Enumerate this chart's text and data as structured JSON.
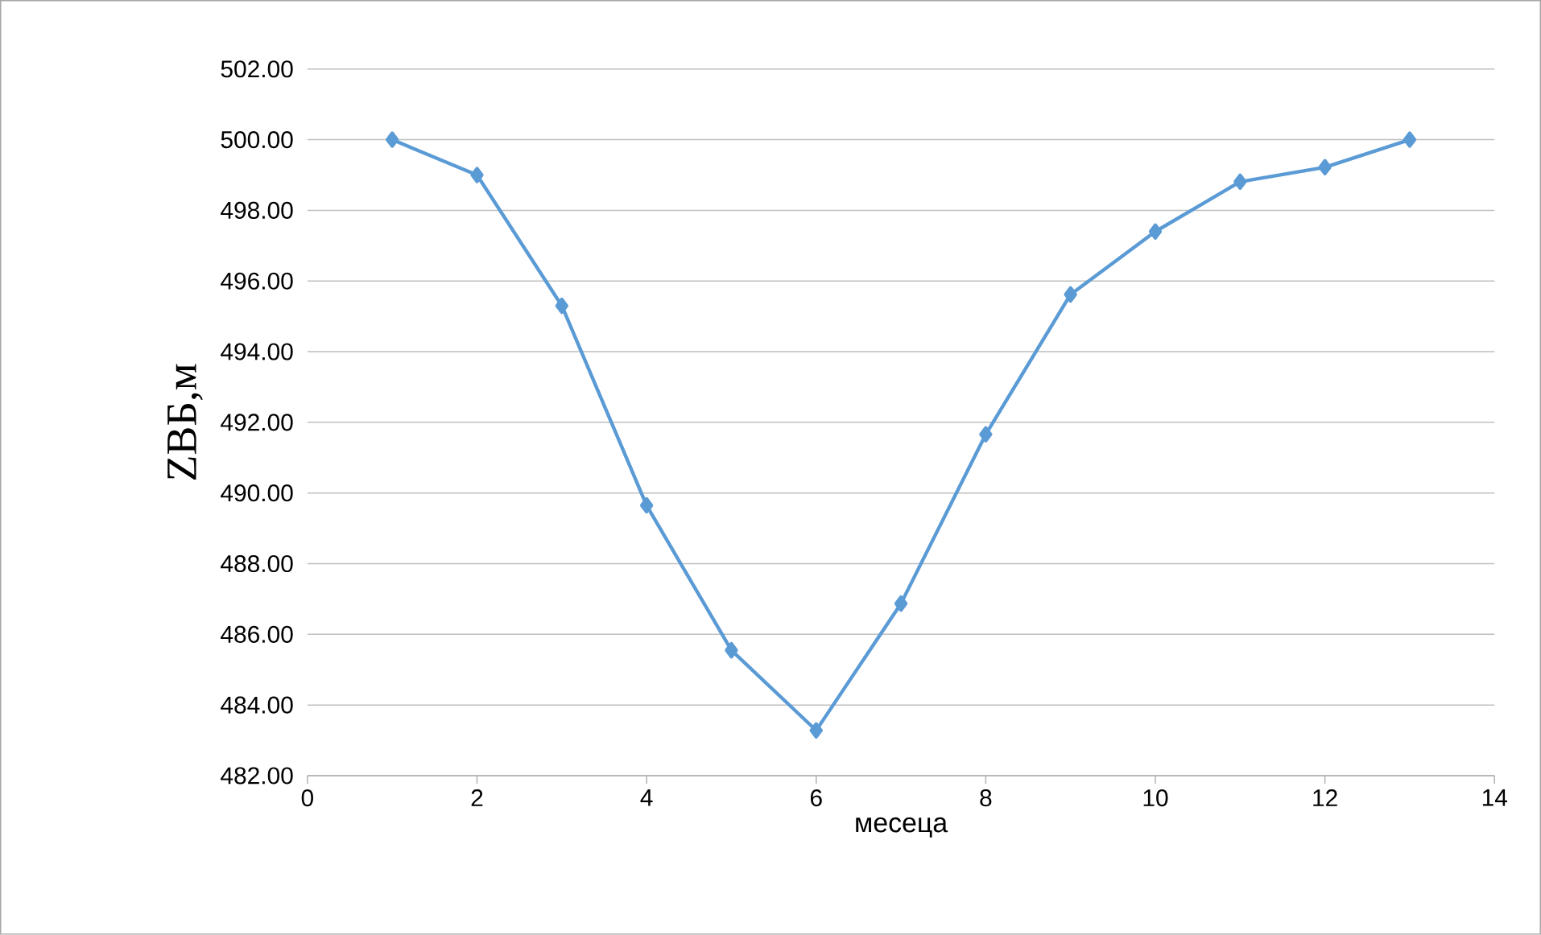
{
  "chart_data": {
    "type": "line",
    "xlabel": "месеца",
    "ylabel": "ZBБ,м",
    "x": [
      1,
      2,
      3,
      4,
      5,
      6,
      7,
      8,
      9,
      10,
      11,
      12,
      13
    ],
    "series": [
      {
        "color": "#5b9bd5",
        "values": [
          500.0,
          499.0,
          495.3,
          489.65,
          485.55,
          483.28,
          486.87,
          491.66,
          495.62,
          497.4,
          498.81,
          499.22,
          500.0
        ]
      }
    ],
    "xlim": [
      0,
      14
    ],
    "xticks": [
      0,
      2,
      4,
      6,
      8,
      10,
      12,
      14
    ],
    "ylim": [
      482,
      502
    ],
    "yticks": [
      {
        "value": 482,
        "label": "482.00"
      },
      {
        "value": 484,
        "label": "484.00"
      },
      {
        "value": 486,
        "label": "486.00"
      },
      {
        "value": 488,
        "label": "488.00"
      },
      {
        "value": 490,
        "label": "490.00"
      },
      {
        "value": 492,
        "label": "492.00"
      },
      {
        "value": 494,
        "label": "494.00"
      },
      {
        "value": 496,
        "label": "496.00"
      },
      {
        "value": 498,
        "label": "498.00"
      },
      {
        "value": 500,
        "label": "500.00"
      },
      {
        "value": 502,
        "label": "502.00"
      }
    ],
    "grid": "y",
    "marker": "diamond",
    "line_style": "solid"
  }
}
